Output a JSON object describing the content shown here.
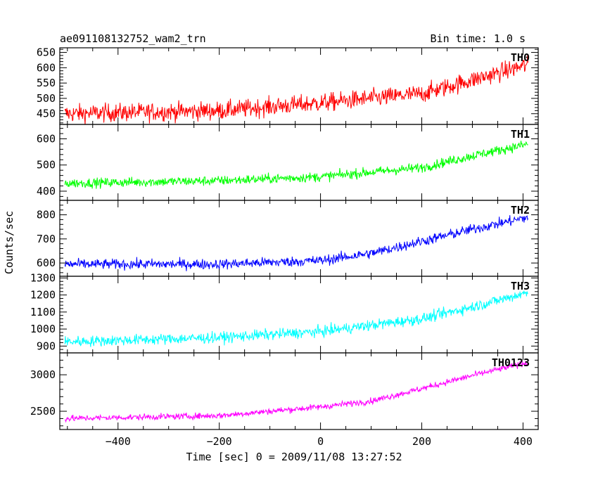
{
  "header": {
    "title": "ae091108132752_wam2_trn",
    "bin_time": "Bin time: 1.0 s"
  },
  "chart_data": {
    "type": "line",
    "xlabel": "Time [sec] 0 = 2009/11/08 13:27:52",
    "ylabel": "Counts/sec",
    "xlim": [
      -515,
      430
    ],
    "x_ticks": [
      -400,
      -200,
      0,
      200,
      400
    ],
    "x_tick_labels": [
      "−400",
      "−200",
      "0",
      "200",
      "400"
    ],
    "x_start": -505,
    "x_end": 410,
    "bin": 1.0,
    "panels": [
      {
        "name": "TH0",
        "color": "#ff0000",
        "ylim": [
          415,
          665
        ],
        "yticks": [
          450,
          500,
          550,
          600,
          650
        ],
        "trend": {
          "x": [
            -505,
            -200,
            0,
            200,
            300,
            410
          ],
          "y": [
            450,
            460,
            485,
            515,
            560,
            610
          ]
        },
        "noise": 42
      },
      {
        "name": "TH1",
        "color": "#00ff00",
        "ylim": [
          365,
          655
        ],
        "yticks": [
          400,
          500,
          600
        ],
        "trend": {
          "x": [
            -505,
            -200,
            0,
            200,
            300,
            410
          ],
          "y": [
            430,
            440,
            455,
            490,
            535,
            580
          ]
        },
        "noise": 26
      },
      {
        "name": "TH2",
        "color": "#0000ff",
        "ylim": [
          545,
          860
        ],
        "yticks": [
          600,
          700,
          800
        ],
        "trend": {
          "x": [
            -505,
            -200,
            0,
            100,
            200,
            300,
            410
          ],
          "y": [
            595,
            595,
            610,
            640,
            690,
            740,
            790
          ]
        },
        "noise": 30
      },
      {
        "name": "TH3",
        "color": "#00ffff",
        "ylim": [
          860,
          1310
        ],
        "yticks": [
          900,
          1000,
          1100,
          1200,
          1300
        ],
        "trend": {
          "x": [
            -505,
            -200,
            0,
            200,
            300,
            410
          ],
          "y": [
            925,
            950,
            985,
            1060,
            1130,
            1215
          ]
        },
        "noise": 45
      },
      {
        "name": "TH0123",
        "color": "#ff00ff",
        "ylim": [
          2250,
          3300
        ],
        "yticks": [
          2500,
          3000
        ],
        "trend": {
          "x": [
            -505,
            -200,
            0,
            100,
            200,
            300,
            410
          ],
          "y": [
            2400,
            2440,
            2560,
            2640,
            2810,
            2990,
            3170
          ]
        },
        "noise": 60
      }
    ]
  }
}
